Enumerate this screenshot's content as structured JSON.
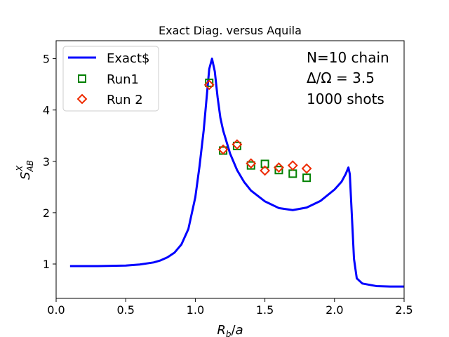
{
  "chart_data": {
    "type": "line",
    "title": "Exact Diag. versus Aquila",
    "xlabel": "R_b/a",
    "ylabel": "S_AB^X",
    "xlim": [
      0.0,
      2.5
    ],
    "ylim": [
      0.33,
      5.35
    ],
    "xticks": [
      0.0,
      0.5,
      1.0,
      1.5,
      2.0,
      2.5
    ],
    "xtick_labels": [
      "0.0",
      "0.5",
      "1.0",
      "1.5",
      "2.0",
      "2.5"
    ],
    "yticks": [
      1,
      2,
      3,
      4,
      5
    ],
    "ytick_labels": [
      "1",
      "2",
      "3",
      "4",
      "5"
    ],
    "grid": false,
    "legend_position": "top-left",
    "annotations": [
      "N=10 chain",
      "Δ/Ω = 3.5",
      "1000 shots"
    ],
    "series": [
      {
        "name": "Exact$",
        "kind": "line",
        "color": "#0000ff",
        "x": [
          0.1,
          0.3,
          0.5,
          0.6,
          0.7,
          0.75,
          0.8,
          0.85,
          0.9,
          0.95,
          1.0,
          1.03,
          1.06,
          1.08,
          1.1,
          1.12,
          1.14,
          1.16,
          1.18,
          1.2,
          1.25,
          1.3,
          1.35,
          1.4,
          1.5,
          1.6,
          1.7,
          1.8,
          1.9,
          2.0,
          2.05,
          2.08,
          2.1,
          2.11,
          2.12,
          2.14,
          2.16,
          2.2,
          2.3,
          2.4,
          2.5
        ],
        "y": [
          0.96,
          0.96,
          0.97,
          0.99,
          1.03,
          1.07,
          1.13,
          1.22,
          1.38,
          1.68,
          2.3,
          2.9,
          3.6,
          4.2,
          4.8,
          5.0,
          4.75,
          4.25,
          3.85,
          3.6,
          3.15,
          2.83,
          2.6,
          2.43,
          2.22,
          2.09,
          2.05,
          2.1,
          2.23,
          2.45,
          2.6,
          2.75,
          2.88,
          2.75,
          2.2,
          1.1,
          0.72,
          0.62,
          0.57,
          0.56,
          0.56
        ]
      },
      {
        "name": "Run1",
        "kind": "scatter",
        "marker": "square",
        "color": "#008000",
        "x": [
          1.1,
          1.2,
          1.3,
          1.4,
          1.5,
          1.6,
          1.7,
          1.8
        ],
        "y": [
          4.53,
          3.21,
          3.3,
          2.92,
          2.95,
          2.83,
          2.76,
          2.68
        ]
      },
      {
        "name": "Run 2",
        "kind": "scatter",
        "marker": "diamond",
        "color": "#ee2a00",
        "x": [
          1.1,
          1.2,
          1.3,
          1.4,
          1.5,
          1.6,
          1.7,
          1.8
        ],
        "y": [
          4.49,
          3.23,
          3.33,
          2.96,
          2.82,
          2.88,
          2.92,
          2.86
        ]
      }
    ]
  }
}
